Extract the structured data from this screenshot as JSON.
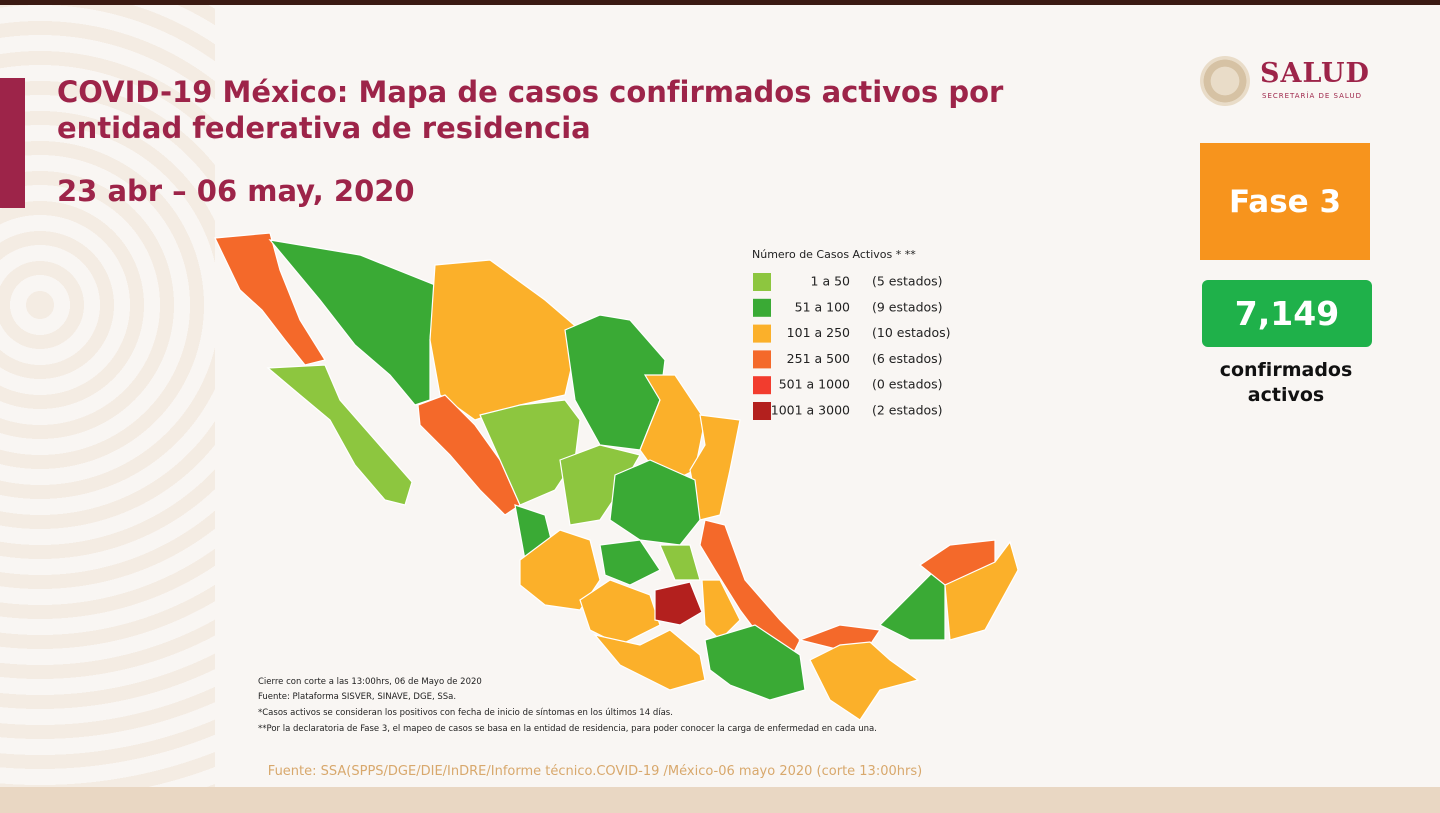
{
  "header": {
    "title_line1": "COVID-19 México: Mapa de casos confirmados activos por",
    "title_line2": "entidad federativa de residencia",
    "date": "23 abr – 06 may, 2020"
  },
  "logo": {
    "name": "SALUD",
    "subtitle": "SECRETARÍA DE SALUD"
  },
  "phase": "Fase 3",
  "total": {
    "value": "7,149",
    "label_line1": "confirmados",
    "label_line2": "activos"
  },
  "legend": {
    "title": "Número de Casos Activos * **",
    "items": [
      {
        "range": "1 a 50",
        "count": "(5 estados)",
        "color": "#8dc63f"
      },
      {
        "range": "51 a 100",
        "count": "(9 estados)",
        "color": "#3aaa35"
      },
      {
        "range": "101 a 250",
        "count": "(10 estados)",
        "color": "#fbb02a"
      },
      {
        "range": "251 a 500",
        "count": "(6 estados)",
        "color": "#f4692a"
      },
      {
        "range": "501 a 1000",
        "count": "(0 estados)",
        "color": "#f23c2e"
      },
      {
        "range": "1001 a 3000",
        "count": "(2 estados)",
        "color": "#b3201e"
      }
    ]
  },
  "notes": [
    "Cierre con corte a las 13:00hrs, 06 de Mayo de 2020",
    "Fuente: Plataforma SISVER, SINAVE, DGE, SSa.",
    "*Casos activos se consideran los positivos con fecha de inicio de síntomas en los últimos 14 días.",
    "**Por la declaratoria de Fase 3, el mapeo de casos se basa en la entidad de residencia, para poder conocer la carga de enfermedad en cada una."
  ],
  "source": "Fuente: SSA(SPPS/DGE/DIE/InDRE/Informe técnico.COVID-19 /México-06 mayo 2020 (corte 13:00hrs)"
}
